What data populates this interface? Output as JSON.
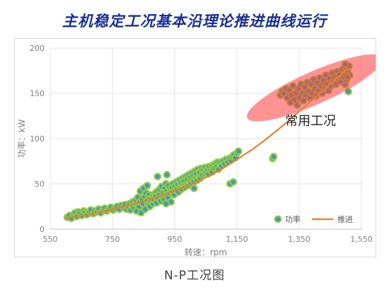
{
  "title": "主机稳定工况基本沿理论推进曲线运行",
  "caption": "N-P工况图",
  "chart_data": {
    "type": "scatter",
    "xlabel": "转速：rpm",
    "ylabel": "功率：kW",
    "xlim": [
      550,
      1550
    ],
    "ylim": [
      0,
      200
    ],
    "xticks": [
      550,
      750,
      950,
      1150,
      1350,
      1550
    ],
    "xtick_labels": [
      "550",
      "750",
      "950",
      "1,150",
      "1,350",
      "1,550"
    ],
    "yticks": [
      0,
      50,
      100,
      150,
      200
    ],
    "ytick_labels": [
      "0",
      "50",
      "100",
      "150",
      "200"
    ],
    "grid": true,
    "legend_position": "bottom-right",
    "annotation": {
      "text": "常用工况",
      "x": 1305,
      "y": 115
    },
    "highlight_ellipse": {
      "cx": 1400,
      "cy": 156,
      "rx": 108,
      "ry": 20,
      "angle_deg": -24,
      "color": "#ff3b3b"
    },
    "colors": {
      "point_fill": "#4a90c8",
      "point_stroke": "#8ccd3c",
      "line": "#ed7d31"
    },
    "series": [
      {
        "name": "功率",
        "kind": "scatter",
        "points": [
          [
            605,
            13
          ],
          [
            612,
            15
          ],
          [
            618,
            12
          ],
          [
            625,
            16
          ],
          [
            630,
            18
          ],
          [
            635,
            14
          ],
          [
            640,
            19
          ],
          [
            645,
            17
          ],
          [
            652,
            15
          ],
          [
            658,
            20
          ],
          [
            662,
            18
          ],
          [
            668,
            16
          ],
          [
            675,
            19
          ],
          [
            680,
            21
          ],
          [
            688,
            17
          ],
          [
            692,
            20
          ],
          [
            700,
            19
          ],
          [
            706,
            22
          ],
          [
            712,
            18
          ],
          [
            720,
            21
          ],
          [
            725,
            23
          ],
          [
            732,
            20
          ],
          [
            738,
            22
          ],
          [
            745,
            24
          ],
          [
            752,
            21
          ],
          [
            758,
            23
          ],
          [
            765,
            25
          ],
          [
            772,
            22
          ],
          [
            778,
            26
          ],
          [
            785,
            24
          ],
          [
            790,
            27
          ],
          [
            795,
            22
          ],
          [
            800,
            25
          ],
          [
            805,
            28
          ],
          [
            808,
            21
          ],
          [
            812,
            26
          ],
          [
            815,
            30
          ],
          [
            818,
            24
          ],
          [
            822,
            28
          ],
          [
            825,
            32
          ],
          [
            828,
            20
          ],
          [
            830,
            27
          ],
          [
            832,
            35
          ],
          [
            835,
            25
          ],
          [
            838,
            30
          ],
          [
            840,
            42
          ],
          [
            842,
            18
          ],
          [
            845,
            33
          ],
          [
            848,
            28
          ],
          [
            850,
            45
          ],
          [
            853,
            36
          ],
          [
            855,
            22
          ],
          [
            858,
            40
          ],
          [
            860,
            31
          ],
          [
            862,
            48
          ],
          [
            865,
            27
          ],
          [
            868,
            38
          ],
          [
            870,
            25
          ],
          [
            872,
            34
          ],
          [
            875,
            30
          ],
          [
            878,
            37
          ],
          [
            880,
            28
          ],
          [
            882,
            35
          ],
          [
            885,
            32
          ],
          [
            888,
            40
          ],
          [
            890,
            36
          ],
          [
            892,
            29
          ],
          [
            895,
            42
          ],
          [
            898,
            34
          ],
          [
            900,
            38
          ],
          [
            902,
            44
          ],
          [
            905,
            31
          ],
          [
            908,
            47
          ],
          [
            910,
            36
          ],
          [
            912,
            40
          ],
          [
            915,
            33
          ],
          [
            918,
            45
          ],
          [
            920,
            38
          ],
          [
            922,
            50
          ],
          [
            925,
            42
          ],
          [
            928,
            35
          ],
          [
            930,
            48
          ],
          [
            932,
            40
          ],
          [
            935,
            44
          ],
          [
            938,
            30
          ],
          [
            940,
            46
          ],
          [
            942,
            41
          ],
          [
            945,
            50
          ],
          [
            948,
            38
          ],
          [
            950,
            47
          ],
          [
            952,
            43
          ],
          [
            955,
            52
          ],
          [
            958,
            45
          ],
          [
            960,
            49
          ],
          [
            962,
            41
          ],
          [
            965,
            54
          ],
          [
            968,
            47
          ],
          [
            970,
            51
          ],
          [
            972,
            44
          ],
          [
            975,
            56
          ],
          [
            978,
            49
          ],
          [
            980,
            53
          ],
          [
            982,
            46
          ],
          [
            985,
            58
          ],
          [
            988,
            50
          ],
          [
            990,
            55
          ],
          [
            992,
            48
          ],
          [
            995,
            60
          ],
          [
            998,
            52
          ],
          [
            1000,
            57
          ],
          [
            1002,
            50
          ],
          [
            1005,
            62
          ],
          [
            1008,
            55
          ],
          [
            1010,
            59
          ],
          [
            1012,
            52
          ],
          [
            1015,
            64
          ],
          [
            1018,
            57
          ],
          [
            1020,
            61
          ],
          [
            1022,
            54
          ],
          [
            1025,
            66
          ],
          [
            1028,
            58
          ],
          [
            1030,
            63
          ],
          [
            1032,
            56
          ],
          [
            1035,
            67
          ],
          [
            1038,
            60
          ],
          [
            1040,
            65
          ],
          [
            1045,
            62
          ],
          [
            1048,
            68
          ],
          [
            1050,
            64
          ],
          [
            1055,
            66
          ],
          [
            1058,
            61
          ],
          [
            1060,
            69
          ],
          [
            1065,
            65
          ],
          [
            1068,
            70
          ],
          [
            1070,
            63
          ],
          [
            1075,
            71
          ],
          [
            1078,
            67
          ],
          [
            1080,
            72
          ],
          [
            1085,
            69
          ],
          [
            1088,
            74
          ],
          [
            1090,
            66
          ],
          [
            1095,
            73
          ],
          [
            1100,
            70
          ],
          [
            1105,
            75
          ],
          [
            1110,
            72
          ],
          [
            1115,
            77
          ],
          [
            1120,
            74
          ],
          [
            1125,
            78
          ],
          [
            1130,
            76
          ],
          [
            1135,
            80
          ],
          [
            1140,
            82
          ],
          [
            1145,
            79
          ],
          [
            1150,
            84
          ],
          [
            1155,
            86
          ],
          [
            1128,
            50
          ],
          [
            1138,
            52
          ],
          [
            895,
            58
          ],
          [
            925,
            60
          ],
          [
            1012,
            45
          ],
          [
            922,
            28
          ],
          [
            1265,
            78
          ],
          [
            1268,
            80
          ],
          [
            1290,
            148
          ],
          [
            1295,
            152
          ],
          [
            1302,
            150
          ],
          [
            1308,
            155
          ],
          [
            1312,
            145
          ],
          [
            1318,
            153
          ],
          [
            1322,
            140
          ],
          [
            1326,
            148
          ],
          [
            1330,
            158
          ],
          [
            1335,
            143
          ],
          [
            1340,
            150
          ],
          [
            1344,
            137
          ],
          [
            1348,
            155
          ],
          [
            1352,
            145
          ],
          [
            1356,
            160
          ],
          [
            1360,
            150
          ],
          [
            1364,
            142
          ],
          [
            1368,
            157
          ],
          [
            1372,
            148
          ],
          [
            1376,
            162
          ],
          [
            1380,
            152
          ],
          [
            1384,
            145
          ],
          [
            1388,
            160
          ],
          [
            1392,
            150
          ],
          [
            1396,
            165
          ],
          [
            1400,
            155
          ],
          [
            1404,
            147
          ],
          [
            1408,
            162
          ],
          [
            1412,
            153
          ],
          [
            1416,
            167
          ],
          [
            1420,
            158
          ],
          [
            1424,
            150
          ],
          [
            1428,
            164
          ],
          [
            1432,
            156
          ],
          [
            1436,
            170
          ],
          [
            1440,
            160
          ],
          [
            1444,
            153
          ],
          [
            1448,
            166
          ],
          [
            1452,
            158
          ],
          [
            1456,
            172
          ],
          [
            1460,
            163
          ],
          [
            1464,
            168
          ],
          [
            1468,
            160
          ],
          [
            1472,
            174
          ],
          [
            1476,
            166
          ],
          [
            1480,
            170
          ],
          [
            1484,
            163
          ],
          [
            1488,
            176
          ],
          [
            1492,
            168
          ],
          [
            1495,
            172
          ],
          [
            1498,
            160
          ],
          [
            1500,
            178
          ],
          [
            1502,
            165
          ],
          [
            1505,
            175
          ],
          [
            1508,
            152
          ],
          [
            1510,
            180
          ],
          [
            1512,
            170
          ],
          [
            1498,
            182
          ],
          [
            1505,
            168
          ]
        ]
      },
      {
        "name": "推进",
        "kind": "line",
        "points": [
          [
            600,
            12
          ],
          [
            650,
            15
          ],
          [
            700,
            18
          ],
          [
            750,
            22
          ],
          [
            800,
            26
          ],
          [
            850,
            31
          ],
          [
            900,
            36
          ],
          [
            950,
            42
          ],
          [
            1000,
            49
          ],
          [
            1050,
            57
          ],
          [
            1100,
            66
          ],
          [
            1150,
            77
          ],
          [
            1200,
            88
          ],
          [
            1250,
            101
          ],
          [
            1300,
            115
          ],
          [
            1350,
            130
          ],
          [
            1400,
            145
          ],
          [
            1450,
            160
          ],
          [
            1500,
            175
          ],
          [
            1515,
            177
          ]
        ]
      }
    ]
  }
}
